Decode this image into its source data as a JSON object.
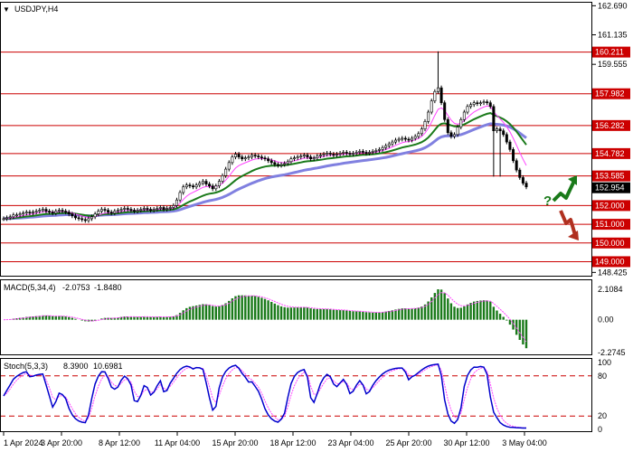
{
  "chart_data": {
    "type": "candlestick",
    "symbol": "USDJPY,H4",
    "price_axis": {
      "ticks": [
        "162.690",
        "161.135",
        "159.555",
        "148.425"
      ],
      "ylim": [
        148.2,
        162.9
      ]
    },
    "price_levels": [
      {
        "value": 160.211,
        "label": "160.211"
      },
      {
        "value": 157.982,
        "label": "157.982"
      },
      {
        "value": 156.282,
        "label": "156.282"
      },
      {
        "value": 154.782,
        "label": "154.782"
      },
      {
        "value": 153.585,
        "label": "153.585"
      },
      {
        "value": 152.0,
        "label": "152.000"
      },
      {
        "value": 151.0,
        "label": "151.000"
      },
      {
        "value": 150.0,
        "label": "150.000"
      },
      {
        "value": 149.0,
        "label": "149.000"
      }
    ],
    "current_price": {
      "value": 152.954,
      "label": "152.954"
    },
    "time_labels": [
      "1 Apr 2024",
      "3 Apr 20:00",
      "8 Apr 12:00",
      "11 Apr 04:00",
      "15 Apr 20:00",
      "18 Apr 12:00",
      "23 Apr 04:00",
      "25 Apr 20:00",
      "30 Apr 12:00",
      "3 May 04:00"
    ],
    "close_series": [
      151.3,
      151.35,
      151.4,
      151.5,
      151.5,
      151.55,
      151.6,
      151.65,
      151.6,
      151.65,
      151.7,
      151.75,
      151.8,
      151.7,
      151.65,
      151.6,
      151.7,
      151.75,
      151.7,
      151.65,
      151.55,
      151.45,
      151.35,
      151.3,
      151.25,
      151.2,
      151.3,
      151.4,
      151.55,
      151.7,
      151.8,
      151.75,
      151.65,
      151.6,
      151.7,
      151.75,
      151.8,
      151.85,
      151.8,
      151.75,
      151.7,
      151.75,
      151.8,
      151.85,
      151.8,
      151.75,
      151.8,
      151.85,
      151.9,
      151.8,
      151.85,
      151.9,
      152.0,
      152.3,
      152.7,
      153.0,
      153.1,
      153.05,
      153.0,
      153.1,
      153.2,
      153.3,
      153.15,
      153.05,
      152.9,
      153.05,
      153.3,
      153.6,
      153.95,
      154.3,
      154.6,
      154.75,
      154.6,
      154.5,
      154.55,
      154.6,
      154.7,
      154.65,
      154.6,
      154.55,
      154.5,
      154.4,
      154.3,
      154.2,
      154.15,
      154.2,
      154.25,
      154.35,
      154.5,
      154.55,
      154.6,
      154.65,
      154.7,
      154.6,
      154.5,
      154.55,
      154.65,
      154.7,
      154.75,
      154.8,
      154.75,
      154.7,
      154.75,
      154.8,
      154.85,
      154.8,
      154.75,
      154.8,
      154.85,
      154.9,
      154.85,
      154.8,
      154.85,
      154.9,
      154.95,
      155.0,
      155.1,
      155.2,
      155.3,
      155.4,
      155.5,
      155.55,
      155.6,
      155.55,
      155.5,
      155.6,
      155.7,
      155.85,
      156.1,
      156.5,
      157.0,
      157.6,
      158.1,
      158.3,
      157.5,
      156.6,
      155.9,
      155.7,
      155.8,
      156.2,
      156.6,
      157.0,
      157.3,
      157.4,
      157.5,
      157.45,
      157.5,
      157.55,
      157.5,
      157.3,
      156.0,
      156.1,
      156.0,
      155.8,
      155.4,
      155.0,
      154.4,
      153.9,
      153.5,
      153.2,
      153.0
    ],
    "indicators": {
      "macd": {
        "label": "MACD(5,34,4)",
        "values": [
          "-2.0753",
          "-1.8480"
        ],
        "ticks": [
          "2.1084",
          "0.00",
          "-2.2745"
        ]
      },
      "stoch": {
        "label": "Stoch(5,3,3)",
        "values": [
          "8.3900",
          "10.6981"
        ],
        "ticks": [
          "100",
          "80",
          "20",
          "0"
        ],
        "levels": [
          80,
          20
        ]
      }
    },
    "colors": {
      "candle": "#000000",
      "level_line": "#cc0000",
      "level_tag": "#cc0000",
      "ma_fast": "#ff44ff",
      "ma_mid": "#1a7a1a",
      "ma_slow": "#8080e0",
      "macd_hist": "#1a7a1a",
      "macd_signal": "#ff44ff",
      "stoch_main": "#0000cc",
      "stoch_signal": "#ff44ff",
      "arrow_up": "#1a7a1a",
      "arrow_down": "#b03020",
      "question": "#1a7a1a"
    },
    "forecast": {
      "question_mark": "?",
      "arrow_up": "up-arrow-icon",
      "arrow_down": "down-arrow-icon"
    }
  }
}
